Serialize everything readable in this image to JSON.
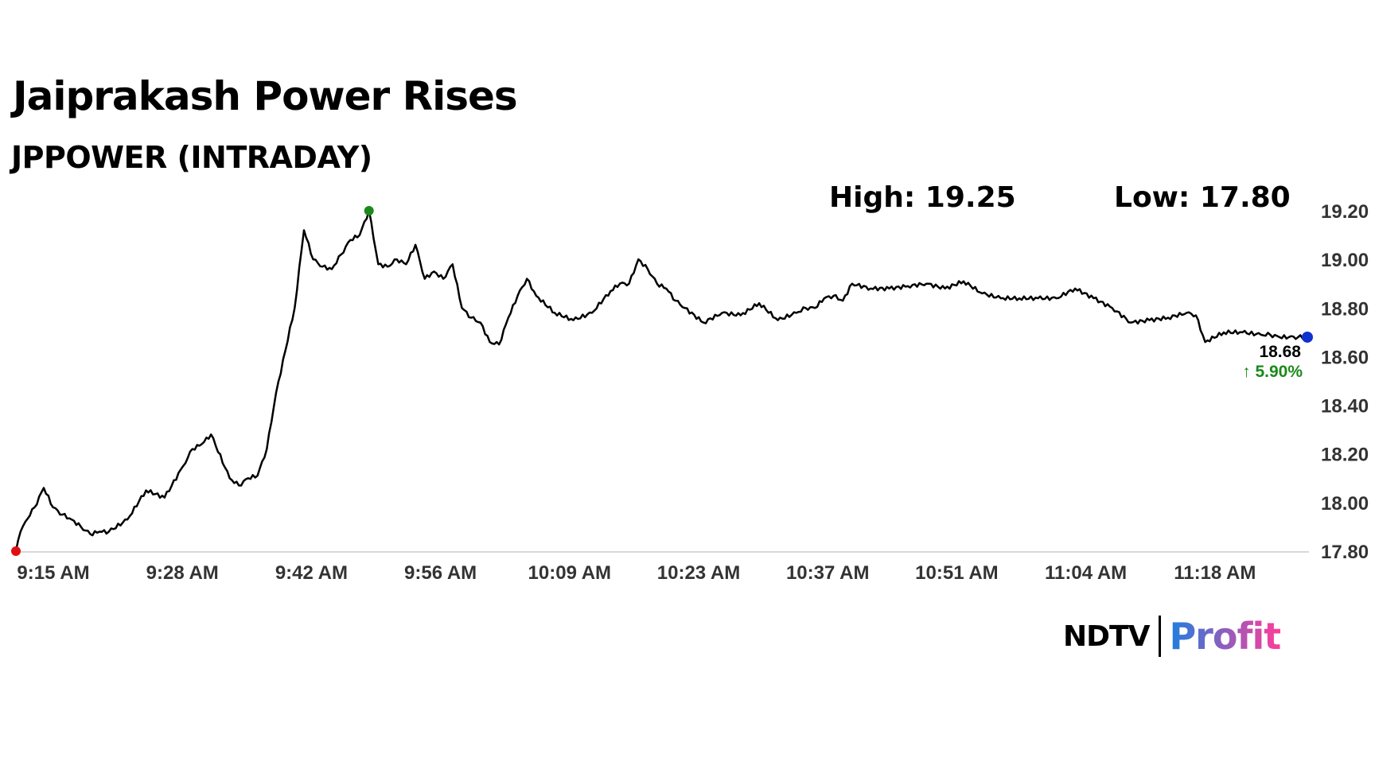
{
  "header": {
    "title": "Jaiprakash Power Rises",
    "subtitle": "JPPOWER (INTRADAY)"
  },
  "stats": {
    "high_label": "High: 19.25",
    "low_label": "Low: 17.80"
  },
  "last": {
    "price": "18.68",
    "change": "↑ 5.90%"
  },
  "logo": {
    "left": "NDTV",
    "right": "Profit"
  },
  "colors": {
    "line": "#000000",
    "start_marker": "#e01010",
    "high_marker": "#1a8a1a",
    "end_marker": "#1030d0",
    "change_up": "#1a8a1a",
    "logo_profit_start": "#1e7fe0",
    "logo_profit_end": "#ff3d9a"
  },
  "chart_data": {
    "type": "line",
    "x_tick_labels": [
      "9:15 AM",
      "9:28 AM",
      "9:42 AM",
      "9:56 AM",
      "10:09 AM",
      "10:23 AM",
      "10:37 AM",
      "10:51 AM",
      "11:04 AM",
      "11:18 AM"
    ],
    "y_tick_labels": [
      "19.20",
      "19.00",
      "18.80",
      "18.60",
      "18.40",
      "18.20",
      "18.00",
      "17.80"
    ],
    "ylim": [
      17.8,
      19.2
    ],
    "xlim_minutes_from_open": [
      0,
      139
    ],
    "grid": false,
    "series": [
      {
        "x": [
          0,
          0.5,
          1,
          2,
          3,
          4,
          5,
          6,
          7,
          8,
          9,
          10,
          12,
          14,
          16,
          18,
          19,
          20,
          21,
          23,
          24,
          25,
          26,
          27,
          28,
          30,
          31,
          32,
          33,
          34,
          35,
          36,
          37,
          38,
          39,
          40,
          41,
          42,
          43,
          44,
          45,
          46,
          47,
          48,
          49,
          50,
          51,
          52,
          53,
          54,
          55,
          56,
          58,
          60,
          62,
          64,
          65,
          66,
          67,
          68,
          69,
          70,
          71,
          72,
          74,
          76,
          78,
          80,
          82,
          84,
          85,
          86,
          87,
          88,
          89,
          90,
          92,
          94,
          96,
          98,
          100,
          102,
          104,
          106,
          108,
          110,
          112,
          114,
          116,
          118,
          120,
          122,
          124,
          126,
          127,
          128,
          130,
          132,
          134,
          135,
          136,
          137,
          138,
          139
        ],
        "values": [
          17.8,
          17.88,
          17.92,
          17.98,
          18.06,
          17.98,
          17.95,
          17.93,
          17.9,
          17.87,
          17.88,
          17.88,
          17.93,
          18.05,
          18.02,
          18.15,
          18.22,
          18.24,
          18.28,
          18.1,
          18.07,
          18.1,
          18.11,
          18.22,
          18.45,
          18.8,
          19.12,
          19.0,
          18.97,
          18.96,
          19.02,
          19.08,
          19.1,
          19.2,
          18.98,
          18.97,
          19.0,
          18.98,
          19.06,
          18.92,
          18.95,
          18.92,
          18.98,
          18.8,
          18.76,
          18.74,
          18.66,
          18.65,
          18.76,
          18.85,
          18.92,
          18.85,
          18.78,
          18.75,
          18.78,
          18.87,
          18.9,
          18.9,
          19.0,
          18.96,
          18.9,
          18.88,
          18.83,
          18.8,
          18.74,
          18.78,
          18.77,
          18.82,
          18.75,
          18.78,
          18.8,
          18.8,
          18.84,
          18.85,
          18.83,
          18.9,
          18.88,
          18.88,
          18.89,
          18.9,
          18.88,
          18.91,
          18.86,
          18.84,
          18.84,
          18.84,
          18.84,
          18.88,
          18.84,
          18.8,
          18.74,
          18.75,
          18.76,
          18.78,
          18.77,
          18.66,
          18.7,
          18.7,
          18.69,
          18.69,
          18.68,
          18.68,
          18.68,
          18.68
        ]
      }
    ],
    "markers": {
      "start": [
        0,
        17.8
      ],
      "high": [
        38,
        19.2
      ],
      "last": [
        139,
        18.68
      ]
    }
  }
}
